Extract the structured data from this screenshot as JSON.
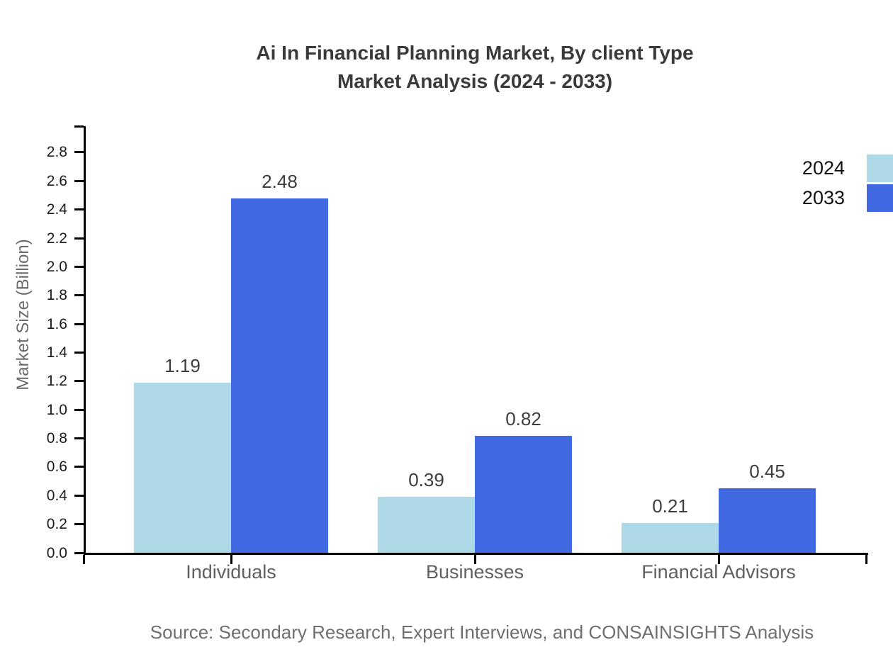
{
  "title": {
    "line1": "Ai In Financial Planning Market, By client Type",
    "line2": "Market Analysis (2024 - 2033)"
  },
  "y_axis": {
    "label": "Market Size (Billion)",
    "tick_labels": [
      "0.0",
      "0.2",
      "0.4",
      "0.6",
      "0.8",
      "1.0",
      "1.2",
      "1.4",
      "1.6",
      "1.8",
      "2.0",
      "2.2",
      "2.4",
      "2.6",
      "2.8"
    ]
  },
  "legend": [
    {
      "label": "2024",
      "color": "#ADD8E6"
    },
    {
      "label": "2033",
      "color": "#4169E1"
    }
  ],
  "source": {
    "text": "Source: Secondary Research, Expert Interviews, and CONSAINSIGHTS Analysis"
  },
  "chart_data": {
    "type": "bar",
    "title": "Ai In Financial Planning Market, By client Type Market Analysis (2024 - 2033)",
    "categories": [
      "Individuals",
      "Businesses",
      "Financial Advisors"
    ],
    "series": [
      {
        "name": "2024",
        "color": "#ADD8E6",
        "values": [
          1.19,
          0.39,
          0.21
        ]
      },
      {
        "name": "2033",
        "color": "#4169E1",
        "values": [
          2.48,
          0.82,
          0.45
        ]
      }
    ],
    "xlabel": "",
    "ylabel": "Market Size (Billion)",
    "ylim": [
      0,
      2.98
    ],
    "ytick_step": 0.2,
    "grid": false,
    "legend_position": "top-right",
    "value_labels": true,
    "value_label_format": "0.00"
  }
}
